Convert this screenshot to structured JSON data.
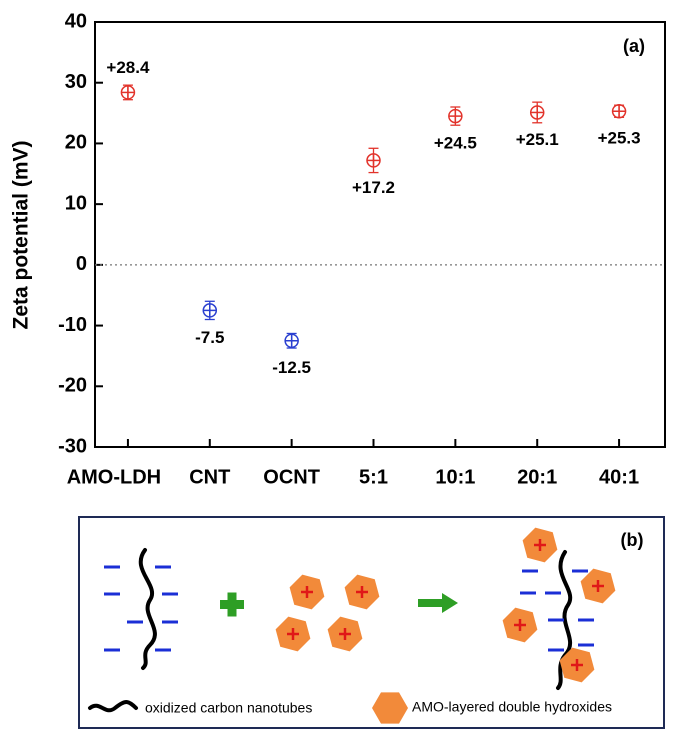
{
  "chart_data": {
    "type": "scatter",
    "y_label": "Zeta potential (mV)",
    "annotation": "(a)",
    "categories": [
      "AMO-LDH",
      "CNT",
      "OCNT",
      "5:1",
      "10:1",
      "20:1",
      "40:1"
    ],
    "values": [
      28.4,
      -7.5,
      -12.5,
      17.2,
      24.5,
      25.1,
      25.3
    ],
    "value_labels": [
      "+28.4",
      "-7.5",
      "-12.5",
      "+17.2",
      "+24.5",
      "+25.1",
      "+25.3"
    ],
    "errors": [
      1.2,
      1.5,
      1.2,
      2.0,
      1.5,
      1.7,
      1.0
    ],
    "colors": [
      "#e2332b",
      "#2a3fd0",
      "#2a3fd0",
      "#e2332b",
      "#e2332b",
      "#e2332b",
      "#e2332b"
    ],
    "ylim": [
      -30,
      40
    ],
    "yticks": [
      -30,
      -20,
      -10,
      0,
      10,
      20,
      30,
      40
    ],
    "reference_line": 0
  },
  "diagram": {
    "label": "(b)",
    "legend": {
      "nanotubes": "oxidized carbon nanotubes",
      "ldh": "AMO-layered double hydroxides"
    }
  }
}
